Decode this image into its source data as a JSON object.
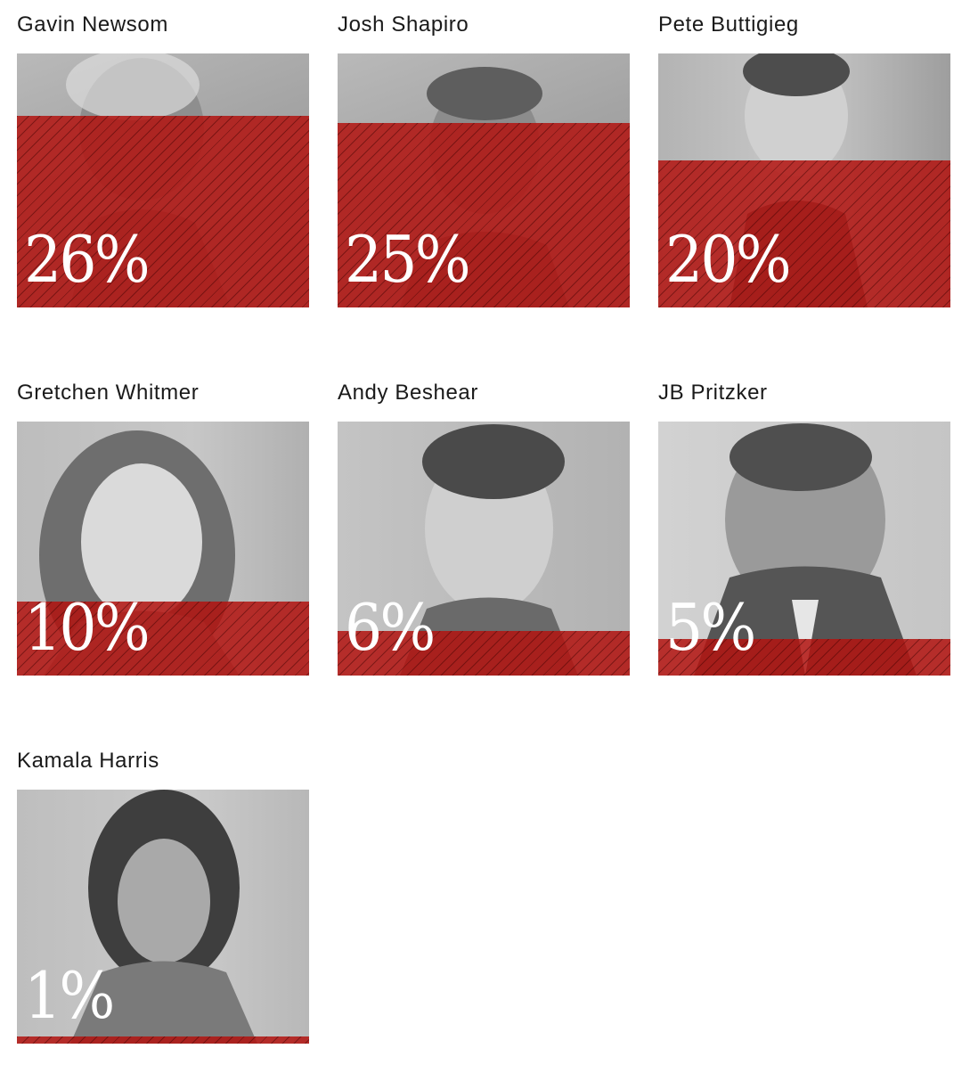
{
  "chart_data": {
    "type": "bar",
    "categories": [
      "Gavin Newsom",
      "Josh Shapiro",
      "Pete Buttigieg",
      "Gretchen Whitmer",
      "Andy Beshear",
      "JB Pritzker",
      "Kamala Harris"
    ],
    "values": [
      26,
      25,
      20,
      10,
      6,
      5,
      1
    ],
    "value_labels": [
      "26%",
      "25%",
      "20%",
      "10%",
      "6%",
      "5%",
      "1%"
    ],
    "unit": "%",
    "ylim": [
      0,
      100
    ],
    "colors": {
      "fill": "#b21410",
      "photo_tint": "#a8a8a8",
      "text": "#1a1a1a"
    }
  },
  "cards": [
    {
      "name": "Gavin Newsom",
      "pct_label": "26%",
      "value": 26,
      "photo_icon": "portrait-photo"
    },
    {
      "name": "Josh Shapiro",
      "pct_label": "25%",
      "value": 25,
      "photo_icon": "portrait-photo"
    },
    {
      "name": "Pete Buttigieg",
      "pct_label": "20%",
      "value": 20,
      "photo_icon": "portrait-photo"
    },
    {
      "name": "Gretchen Whitmer",
      "pct_label": "10%",
      "value": 10,
      "photo_icon": "portrait-photo"
    },
    {
      "name": "Andy Beshear",
      "pct_label": "6%",
      "value": 6,
      "photo_icon": "portrait-photo"
    },
    {
      "name": "JB Pritzker",
      "pct_label": "5%",
      "value": 5,
      "photo_icon": "portrait-photo"
    },
    {
      "name": "Kamala Harris",
      "pct_label": "1%",
      "value": 1,
      "photo_icon": "portrait-photo"
    }
  ]
}
